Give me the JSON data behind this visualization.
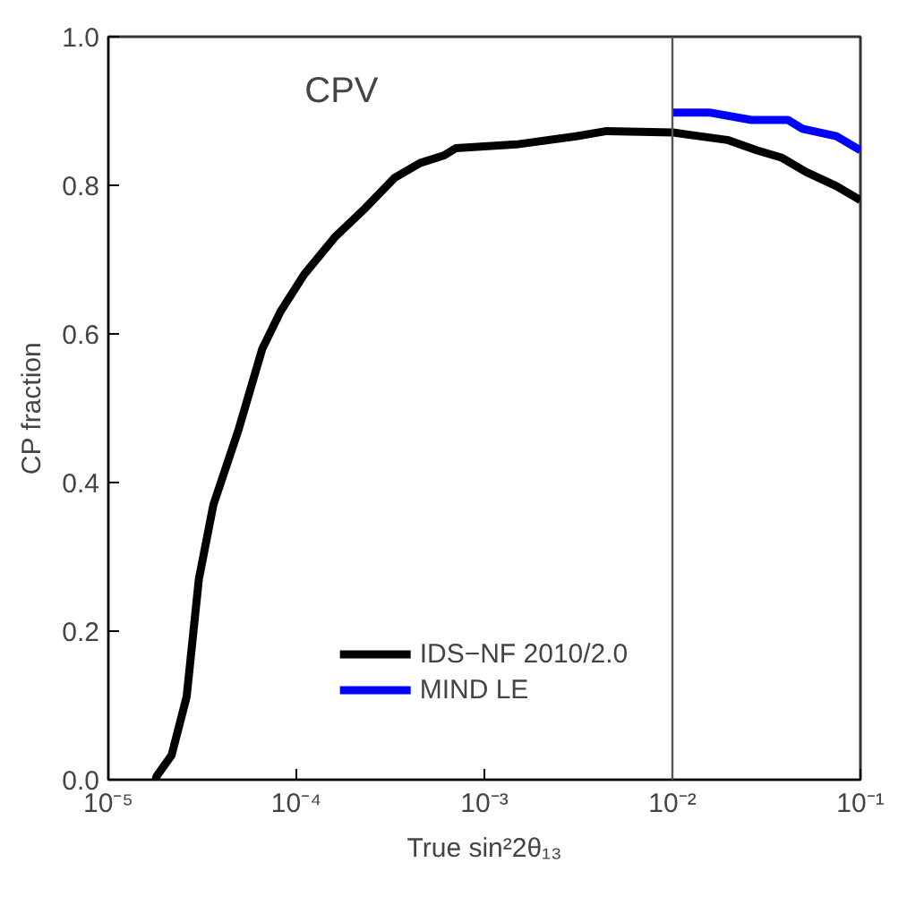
{
  "chart_data": {
    "type": "line",
    "title": "CPV",
    "xlabel": "True sin²2θ₁₃",
    "ylabel": "CP fraction",
    "log": "x",
    "grid": false,
    "legend": "bottom",
    "marker": "none",
    "line_style": "solid",
    "xlim": [
      1e-05,
      0.1
    ],
    "ylim": [
      0,
      1
    ],
    "xticks": [
      {
        "value": 1e-05,
        "label": "10⁻⁵"
      },
      {
        "value": 0.0001,
        "label": "10⁻⁴"
      },
      {
        "value": 0.001,
        "label": "10⁻³"
      },
      {
        "value": 0.01,
        "label": "10⁻²"
      },
      {
        "value": 0.1,
        "label": "10⁻¹"
      }
    ],
    "yticks": [
      {
        "value": 0,
        "label": "0.0"
      },
      {
        "value": 0.2,
        "label": "0.2"
      },
      {
        "value": 0.4,
        "label": "0.4"
      },
      {
        "value": 0.6,
        "label": "0.6"
      },
      {
        "value": 0.8,
        "label": "0.8"
      },
      {
        "value": 1,
        "label": "1.0"
      }
    ],
    "ref_lines": [
      {
        "axis": "x",
        "value": 0.01,
        "label": null,
        "color": "#555555"
      }
    ],
    "series": [
      {
        "name": "IDS−NF 2010/2.0",
        "color": "#000000",
        "x": [
          1.78e-05,
          1.81e-05,
          2.17e-05,
          2.61e-05,
          3.03e-05,
          3.62e-05,
          4.91e-05,
          6.59e-05,
          8.23e-05,
          0.00011,
          0.00016,
          0.000234,
          0.000333,
          0.000455,
          0.000607,
          0.000705,
          0.00148,
          0.00307,
          0.00448,
          0.0101,
          0.0196,
          0.0282,
          0.0383,
          0.0514,
          0.0745,
          0.1
        ],
        "values": [
          0,
          0.005,
          0.033,
          0.112,
          0.27,
          0.37,
          0.47,
          0.58,
          0.63,
          0.68,
          0.73,
          0.77,
          0.81,
          0.83,
          0.84,
          0.85,
          0.855,
          0.866,
          0.873,
          0.871,
          0.861,
          0.847,
          0.837,
          0.818,
          0.799,
          0.78
        ]
      },
      {
        "name": "MIND LE",
        "color": "#0000ff",
        "x": [
          0.01,
          0.0157,
          0.0263,
          0.0411,
          0.0492,
          0.0745,
          0.1
        ],
        "values": [
          0.898,
          0.898,
          0.888,
          0.888,
          0.876,
          0.866,
          0.847
        ]
      }
    ]
  }
}
